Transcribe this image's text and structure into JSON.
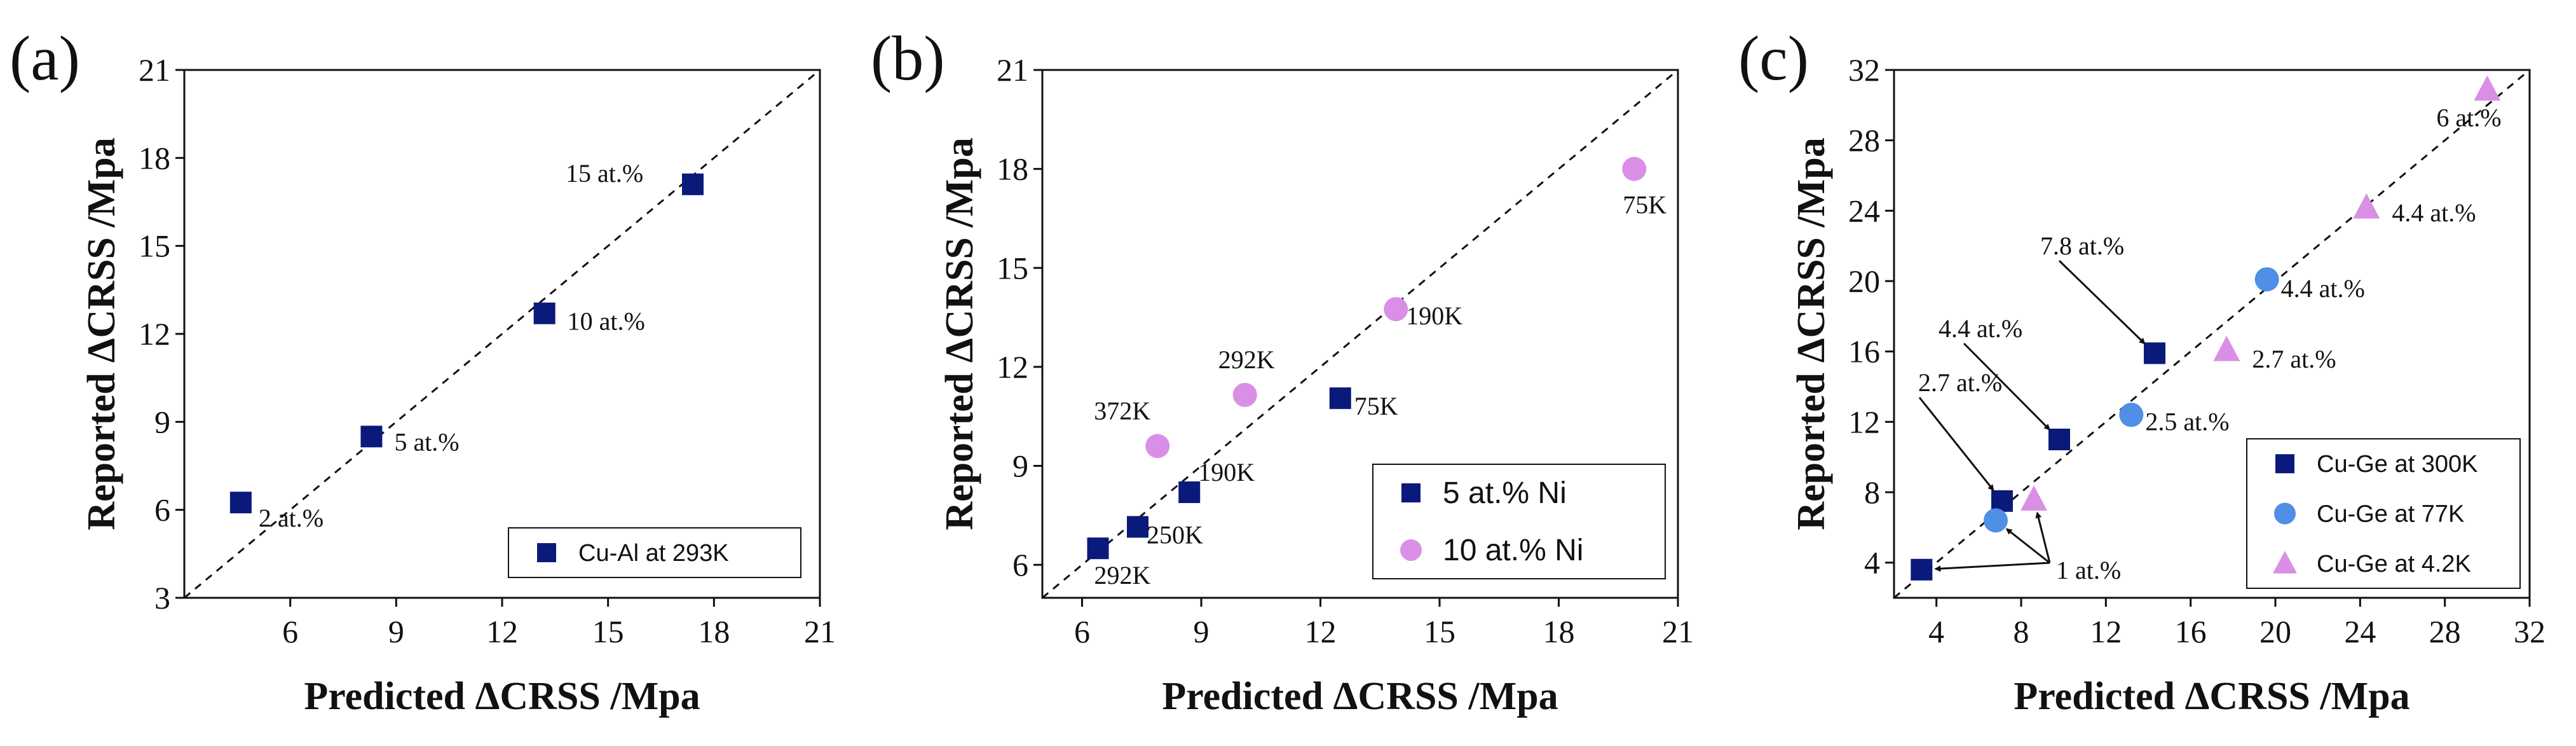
{
  "colors": {
    "navy": "#0a1a7a",
    "blue": "#4f8fe6",
    "violet": "#d98fe6",
    "ink": "#111111"
  },
  "chart_data": [
    {
      "type": "scatter",
      "panel_label": "(a)",
      "xlabel": "Predicted ΔCRSS /Mpa",
      "ylabel": "Reported ΔCRSS /Mpa",
      "xlim": [
        3,
        21
      ],
      "ylim": [
        3,
        21
      ],
      "xticks": [
        6,
        9,
        12,
        15,
        18,
        21
      ],
      "yticks": [
        3,
        6,
        9,
        12,
        15,
        18,
        21
      ],
      "diagonal": true,
      "legend_position": "bottom-right",
      "series": [
        {
          "name": "Cu-Al at 293K",
          "marker": "square",
          "color": "#0a1a7a",
          "points": [
            {
              "x": 4.6,
              "y": 6.25,
              "label": "2 at.%"
            },
            {
              "x": 8.3,
              "y": 8.5,
              "label": "5 at.%"
            },
            {
              "x": 13.2,
              "y": 12.7,
              "label": "10 at.%"
            },
            {
              "x": 17.4,
              "y": 17.1,
              "label": "15 at.%"
            }
          ]
        }
      ]
    },
    {
      "type": "scatter",
      "panel_label": "(b)",
      "xlabel": "Predicted ΔCRSS /Mpa",
      "ylabel": "Reported ΔCRSS /Mpa",
      "xlim": [
        5,
        21
      ],
      "ylim": [
        5,
        21
      ],
      "xticks": [
        6,
        9,
        12,
        15,
        18,
        21
      ],
      "yticks": [
        6,
        9,
        12,
        15,
        18,
        21
      ],
      "diagonal": true,
      "legend_position": "bottom-right",
      "series": [
        {
          "name": "5 at.% Ni",
          "marker": "square",
          "color": "#0a1a7a",
          "points": [
            {
              "x": 6.4,
              "y": 6.5,
              "label": "292K"
            },
            {
              "x": 7.4,
              "y": 7.15,
              "label": "250K"
            },
            {
              "x": 8.7,
              "y": 8.2,
              "label": "190K"
            },
            {
              "x": 12.5,
              "y": 11.05,
              "label": "75K"
            }
          ]
        },
        {
          "name": "10 at.% Ni",
          "marker": "circle",
          "color": "#d98fe6",
          "points": [
            {
              "x": 7.9,
              "y": 9.6,
              "label": "372K"
            },
            {
              "x": 10.1,
              "y": 11.15,
              "label": "292K"
            },
            {
              "x": 13.9,
              "y": 13.75,
              "label": "190K"
            },
            {
              "x": 19.9,
              "y": 18.0,
              "label": "75K"
            }
          ]
        }
      ]
    },
    {
      "type": "scatter",
      "panel_label": "(c)",
      "xlabel": "Predicted ΔCRSS /Mpa",
      "ylabel": "Reported ΔCRSS /Mpa",
      "xlim": [
        2,
        32
      ],
      "ylim": [
        2,
        32
      ],
      "xticks": [
        4,
        8,
        12,
        16,
        20,
        24,
        28,
        32
      ],
      "yticks": [
        4,
        8,
        12,
        16,
        20,
        24,
        28,
        32
      ],
      "diagonal": true,
      "legend_position": "bottom-right",
      "series": [
        {
          "name": "Cu-Ge at 300K",
          "marker": "square",
          "color": "#0a1a7a",
          "points": [
            {
              "x": 3.3,
              "y": 3.6,
              "label": ""
            },
            {
              "x": 7.1,
              "y": 7.5,
              "label": ""
            },
            {
              "x": 9.8,
              "y": 11.0,
              "label": ""
            },
            {
              "x": 14.3,
              "y": 15.9,
              "label": ""
            }
          ]
        },
        {
          "name": "Cu-Ge at 77K",
          "marker": "circle",
          "color": "#4f8fe6",
          "points": [
            {
              "x": 6.8,
              "y": 6.4,
              "label": ""
            },
            {
              "x": 13.2,
              "y": 12.4,
              "label": "2.5 at.%"
            },
            {
              "x": 19.6,
              "y": 20.1,
              "label": "4.4 at.%"
            }
          ]
        },
        {
          "name": "Cu-Ge at 4.2K",
          "marker": "triangle",
          "color": "#d98fe6",
          "points": [
            {
              "x": 8.6,
              "y": 7.6,
              "label": ""
            },
            {
              "x": 17.7,
              "y": 16.1,
              "label": "2.7 at.%"
            },
            {
              "x": 24.3,
              "y": 24.2,
              "label": "4.4 at.%"
            },
            {
              "x": 30.0,
              "y": 30.9,
              "label": "6 at.%"
            }
          ]
        }
      ],
      "arrow_annotations": [
        {
          "text": "1 at.%",
          "target_x": 3.3,
          "target_y": 3.6
        },
        {
          "text": "1 at.%",
          "target_x": 6.8,
          "target_y": 6.4
        },
        {
          "text": "1 at.%",
          "target_x": 8.6,
          "target_y": 7.6
        },
        {
          "text": "2.7 at.%",
          "target_x": 7.1,
          "target_y": 7.5
        },
        {
          "text": "4.4 at.%",
          "target_x": 9.8,
          "target_y": 11.0
        },
        {
          "text": "7.8 at.%",
          "target_x": 14.3,
          "target_y": 15.9
        }
      ]
    }
  ]
}
